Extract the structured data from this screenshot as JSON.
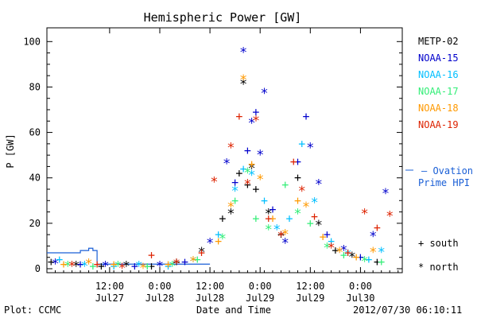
{
  "chart_data": {
    "type": "scatter",
    "title": "Hemispheric Power [GW]",
    "xlabel": "Date and Time",
    "ylabel": "P [GW]",
    "ylim": [
      0,
      105
    ],
    "xlim": [
      "2012-07-26 21:00",
      "2012-07-30 10:00"
    ],
    "y_ticks": [
      0,
      20,
      40,
      60,
      80,
      100
    ],
    "x_ticks": [
      {
        "time": "2012-07-27 12:00",
        "top": "12:00",
        "bottom": "Jul27"
      },
      {
        "time": "2012-07-28 00:00",
        "top": "0:00",
        "bottom": "Jul28"
      },
      {
        "time": "2012-07-28 12:00",
        "top": "12:00",
        "bottom": "Jul28"
      },
      {
        "time": "2012-07-29 00:00",
        "top": "0:00",
        "bottom": "Jul29"
      },
      {
        "time": "2012-07-29 12:00",
        "top": "12:00",
        "bottom": "Jul29"
      },
      {
        "time": "2012-07-30 00:00",
        "top": "0:00",
        "bottom": "Jul30"
      }
    ],
    "grid": false,
    "legend_position": "right",
    "markers": {
      "south": "+",
      "north": "*"
    },
    "marker_legend": [
      {
        "symbol": "+",
        "label": "south"
      },
      {
        "symbol": "*",
        "label": "north"
      }
    ],
    "series": [
      {
        "name": "METP-02",
        "color": "#000000",
        "points": [
          {
            "t": "2012-07-26 22:00",
            "y": 3,
            "m": "+"
          },
          {
            "t": "2012-07-27 04:00",
            "y": 2,
            "m": "*"
          },
          {
            "t": "2012-07-27 10:00",
            "y": 1,
            "m": "+"
          },
          {
            "t": "2012-07-27 16:00",
            "y": 2,
            "m": "*"
          },
          {
            "t": "2012-07-27 22:00",
            "y": 1,
            "m": "+"
          },
          {
            "t": "2012-07-28 04:00",
            "y": 3,
            "m": "+"
          },
          {
            "t": "2012-07-28 10:00",
            "y": 8,
            "m": "*"
          },
          {
            "t": "2012-07-28 15:00",
            "y": 22,
            "m": "+"
          },
          {
            "t": "2012-07-28 17:00",
            "y": 25,
            "m": "*"
          },
          {
            "t": "2012-07-28 19:00",
            "y": 42,
            "m": "+"
          },
          {
            "t": "2012-07-28 20:00",
            "y": 82,
            "m": "*"
          },
          {
            "t": "2012-07-28 21:00",
            "y": 37,
            "m": "+"
          },
          {
            "t": "2012-07-28 22:00",
            "y": 45,
            "m": "*"
          },
          {
            "t": "2012-07-28 23:00",
            "y": 35,
            "m": "+"
          },
          {
            "t": "2012-07-29 02:00",
            "y": 25,
            "m": "*"
          },
          {
            "t": "2012-07-29 05:00",
            "y": 15,
            "m": "+"
          },
          {
            "t": "2012-07-29 09:00",
            "y": 40,
            "m": "+"
          },
          {
            "t": "2012-07-29 14:00",
            "y": 20,
            "m": "*"
          },
          {
            "t": "2012-07-29 18:00",
            "y": 8,
            "m": "+"
          },
          {
            "t": "2012-07-29 22:00",
            "y": 6,
            "m": "*"
          },
          {
            "t": "2012-07-30 04:00",
            "y": 3,
            "m": "+"
          }
        ]
      },
      {
        "name": "NOAA-15",
        "color": "#0000cc",
        "points": [
          {
            "t": "2012-07-26 23:00",
            "y": 3,
            "m": "*"
          },
          {
            "t": "2012-07-27 05:00",
            "y": 2,
            "m": "+"
          },
          {
            "t": "2012-07-27 11:00",
            "y": 2,
            "m": "*"
          },
          {
            "t": "2012-07-27 18:00",
            "y": 1,
            "m": "+"
          },
          {
            "t": "2012-07-28 00:00",
            "y": 2,
            "m": "*"
          },
          {
            "t": "2012-07-28 06:00",
            "y": 3,
            "m": "+"
          },
          {
            "t": "2012-07-28 12:00",
            "y": 12,
            "m": "*"
          },
          {
            "t": "2012-07-28 16:00",
            "y": 47,
            "m": "*"
          },
          {
            "t": "2012-07-28 18:00",
            "y": 38,
            "m": "+"
          },
          {
            "t": "2012-07-28 20:00",
            "y": 96,
            "m": "*"
          },
          {
            "t": "2012-07-28 21:00",
            "y": 52,
            "m": "+"
          },
          {
            "t": "2012-07-28 22:00",
            "y": 65,
            "m": "*"
          },
          {
            "t": "2012-07-28 23:00",
            "y": 69,
            "m": "+"
          },
          {
            "t": "2012-07-29 00:00",
            "y": 51,
            "m": "*"
          },
          {
            "t": "2012-07-29 01:00",
            "y": 78,
            "m": "*"
          },
          {
            "t": "2012-07-29 03:00",
            "y": 26,
            "m": "+"
          },
          {
            "t": "2012-07-29 06:00",
            "y": 12,
            "m": "*"
          },
          {
            "t": "2012-07-29 09:00",
            "y": 47,
            "m": "+"
          },
          {
            "t": "2012-07-29 11:00",
            "y": 67,
            "m": "+"
          },
          {
            "t": "2012-07-29 12:00",
            "y": 54,
            "m": "*"
          },
          {
            "t": "2012-07-29 14:00",
            "y": 38,
            "m": "*"
          },
          {
            "t": "2012-07-29 16:00",
            "y": 15,
            "m": "+"
          },
          {
            "t": "2012-07-29 20:00",
            "y": 9,
            "m": "*"
          },
          {
            "t": "2012-07-30 00:00",
            "y": 5,
            "m": "+"
          },
          {
            "t": "2012-07-30 03:00",
            "y": 15,
            "m": "*"
          },
          {
            "t": "2012-07-30 06:00",
            "y": 34,
            "m": "*"
          }
        ]
      },
      {
        "name": "NOAA-16",
        "color": "#00bfff",
        "points": [
          {
            "t": "2012-07-27 00:00",
            "y": 4,
            "m": "+"
          },
          {
            "t": "2012-07-27 06:00",
            "y": 2,
            "m": "*"
          },
          {
            "t": "2012-07-27 13:00",
            "y": 1,
            "m": "+"
          },
          {
            "t": "2012-07-27 19:00",
            "y": 2,
            "m": "*"
          },
          {
            "t": "2012-07-28 02:00",
            "y": 1,
            "m": "+"
          },
          {
            "t": "2012-07-28 08:00",
            "y": 4,
            "m": "*"
          },
          {
            "t": "2012-07-28 14:00",
            "y": 15,
            "m": "+"
          },
          {
            "t": "2012-07-28 18:00",
            "y": 35,
            "m": "*"
          },
          {
            "t": "2012-07-28 20:00",
            "y": 44,
            "m": "+"
          },
          {
            "t": "2012-07-28 22:00",
            "y": 42,
            "m": "*"
          },
          {
            "t": "2012-07-29 01:00",
            "y": 30,
            "m": "+"
          },
          {
            "t": "2012-07-29 04:00",
            "y": 18,
            "m": "*"
          },
          {
            "t": "2012-07-29 07:00",
            "y": 22,
            "m": "+"
          },
          {
            "t": "2012-07-29 10:00",
            "y": 55,
            "m": "+"
          },
          {
            "t": "2012-07-29 13:00",
            "y": 30,
            "m": "*"
          },
          {
            "t": "2012-07-29 17:00",
            "y": 12,
            "m": "+"
          },
          {
            "t": "2012-07-29 21:00",
            "y": 7,
            "m": "*"
          },
          {
            "t": "2012-07-30 02:00",
            "y": 4,
            "m": "+"
          },
          {
            "t": "2012-07-30 05:00",
            "y": 8,
            "m": "*"
          }
        ]
      },
      {
        "name": "NOAA-17",
        "color": "#33ee77",
        "points": [
          {
            "t": "2012-07-27 02:00",
            "y": 2,
            "m": "*"
          },
          {
            "t": "2012-07-27 08:00",
            "y": 1,
            "m": "+"
          },
          {
            "t": "2012-07-27 14:00",
            "y": 2,
            "m": "*"
          },
          {
            "t": "2012-07-27 21:00",
            "y": 1,
            "m": "+"
          },
          {
            "t": "2012-07-28 03:00",
            "y": 2,
            "m": "*"
          },
          {
            "t": "2012-07-28 09:00",
            "y": 4,
            "m": "+"
          },
          {
            "t": "2012-07-28 15:00",
            "y": 14,
            "m": "*"
          },
          {
            "t": "2012-07-28 18:00",
            "y": 30,
            "m": "+"
          },
          {
            "t": "2012-07-28 21:00",
            "y": 43,
            "m": "*"
          },
          {
            "t": "2012-07-28 23:00",
            "y": 22,
            "m": "+"
          },
          {
            "t": "2012-07-29 02:00",
            "y": 18,
            "m": "*"
          },
          {
            "t": "2012-07-29 06:00",
            "y": 37,
            "m": "+"
          },
          {
            "t": "2012-07-29 09:00",
            "y": 25,
            "m": "*"
          },
          {
            "t": "2012-07-29 12:00",
            "y": 20,
            "m": "+"
          },
          {
            "t": "2012-07-29 16:00",
            "y": 10,
            "m": "*"
          },
          {
            "t": "2012-07-29 20:00",
            "y": 6,
            "m": "+"
          },
          {
            "t": "2012-07-30 01:00",
            "y": 4,
            "m": "*"
          },
          {
            "t": "2012-07-30 05:00",
            "y": 3,
            "m": "+"
          }
        ]
      },
      {
        "name": "NOAA-18",
        "color": "#ff9900",
        "points": [
          {
            "t": "2012-07-27 01:00",
            "y": 2,
            "m": "+"
          },
          {
            "t": "2012-07-27 07:00",
            "y": 3,
            "m": "*"
          },
          {
            "t": "2012-07-27 13:00",
            "y": 2,
            "m": "+"
          },
          {
            "t": "2012-07-27 20:00",
            "y": 1,
            "m": "*"
          },
          {
            "t": "2012-07-28 02:00",
            "y": 2,
            "m": "+"
          },
          {
            "t": "2012-07-28 08:00",
            "y": 4,
            "m": "*"
          },
          {
            "t": "2012-07-28 14:00",
            "y": 12,
            "m": "+"
          },
          {
            "t": "2012-07-28 17:00",
            "y": 28,
            "m": "*"
          },
          {
            "t": "2012-07-28 20:00",
            "y": 84,
            "m": "*"
          },
          {
            "t": "2012-07-28 22:00",
            "y": 46,
            "m": "+"
          },
          {
            "t": "2012-07-29 00:00",
            "y": 40,
            "m": "*"
          },
          {
            "t": "2012-07-29 03:00",
            "y": 22,
            "m": "+"
          },
          {
            "t": "2012-07-29 06:00",
            "y": 16,
            "m": "*"
          },
          {
            "t": "2012-07-29 09:00",
            "y": 30,
            "m": "+"
          },
          {
            "t": "2012-07-29 11:00",
            "y": 28,
            "m": "*"
          },
          {
            "t": "2012-07-29 15:00",
            "y": 14,
            "m": "+"
          },
          {
            "t": "2012-07-29 19:00",
            "y": 8,
            "m": "*"
          },
          {
            "t": "2012-07-29 23:00",
            "y": 5,
            "m": "+"
          },
          {
            "t": "2012-07-30 03:00",
            "y": 8,
            "m": "*"
          }
        ]
      },
      {
        "name": "NOAA-19",
        "color": "#dd2200",
        "points": [
          {
            "t": "2012-07-27 03:00",
            "y": 2,
            "m": "*"
          },
          {
            "t": "2012-07-27 09:00",
            "y": 2,
            "m": "+"
          },
          {
            "t": "2012-07-27 15:00",
            "y": 1,
            "m": "*"
          },
          {
            "t": "2012-07-27 22:00",
            "y": 6,
            "m": "+"
          },
          {
            "t": "2012-07-28 04:00",
            "y": 3,
            "m": "*"
          },
          {
            "t": "2012-07-28 10:00",
            "y": 7,
            "m": "+"
          },
          {
            "t": "2012-07-28 13:00",
            "y": 39,
            "m": "*"
          },
          {
            "t": "2012-07-28 17:00",
            "y": 54,
            "m": "*"
          },
          {
            "t": "2012-07-28 19:00",
            "y": 67,
            "m": "+"
          },
          {
            "t": "2012-07-28 21:00",
            "y": 38,
            "m": "*"
          },
          {
            "t": "2012-07-28 23:00",
            "y": 66,
            "m": "*"
          },
          {
            "t": "2012-07-29 02:00",
            "y": 22,
            "m": "+"
          },
          {
            "t": "2012-07-29 05:00",
            "y": 15,
            "m": "*"
          },
          {
            "t": "2012-07-29 08:00",
            "y": 47,
            "m": "+"
          },
          {
            "t": "2012-07-29 10:00",
            "y": 35,
            "m": "*"
          },
          {
            "t": "2012-07-29 13:00",
            "y": 23,
            "m": "+"
          },
          {
            "t": "2012-07-29 17:00",
            "y": 10,
            "m": "*"
          },
          {
            "t": "2012-07-29 21:00",
            "y": 7,
            "m": "+"
          },
          {
            "t": "2012-07-30 01:00",
            "y": 25,
            "m": "*"
          },
          {
            "t": "2012-07-30 04:00",
            "y": 18,
            "m": "+"
          },
          {
            "t": "2012-07-30 07:00",
            "y": 24,
            "m": "*"
          }
        ]
      }
    ],
    "model_series": {
      "name_line1": "Ovation",
      "name_line2": "Prime HPI",
      "color": "#1a5fd6",
      "legend_marker": "–",
      "points": [
        {
          "t": "2012-07-26 21:00",
          "y": 7
        },
        {
          "t": "2012-07-27 04:00",
          "y": 7
        },
        {
          "t": "2012-07-27 05:00",
          "y": 8
        },
        {
          "t": "2012-07-27 07:00",
          "y": 9
        },
        {
          "t": "2012-07-27 08:00",
          "y": 8
        },
        {
          "t": "2012-07-27 09:00",
          "y": 2
        },
        {
          "t": "2012-07-28 12:00",
          "y": 2
        }
      ]
    }
  },
  "footer": {
    "left": "Plot: CCMC",
    "right": "2012/07/30 06:10:11"
  }
}
